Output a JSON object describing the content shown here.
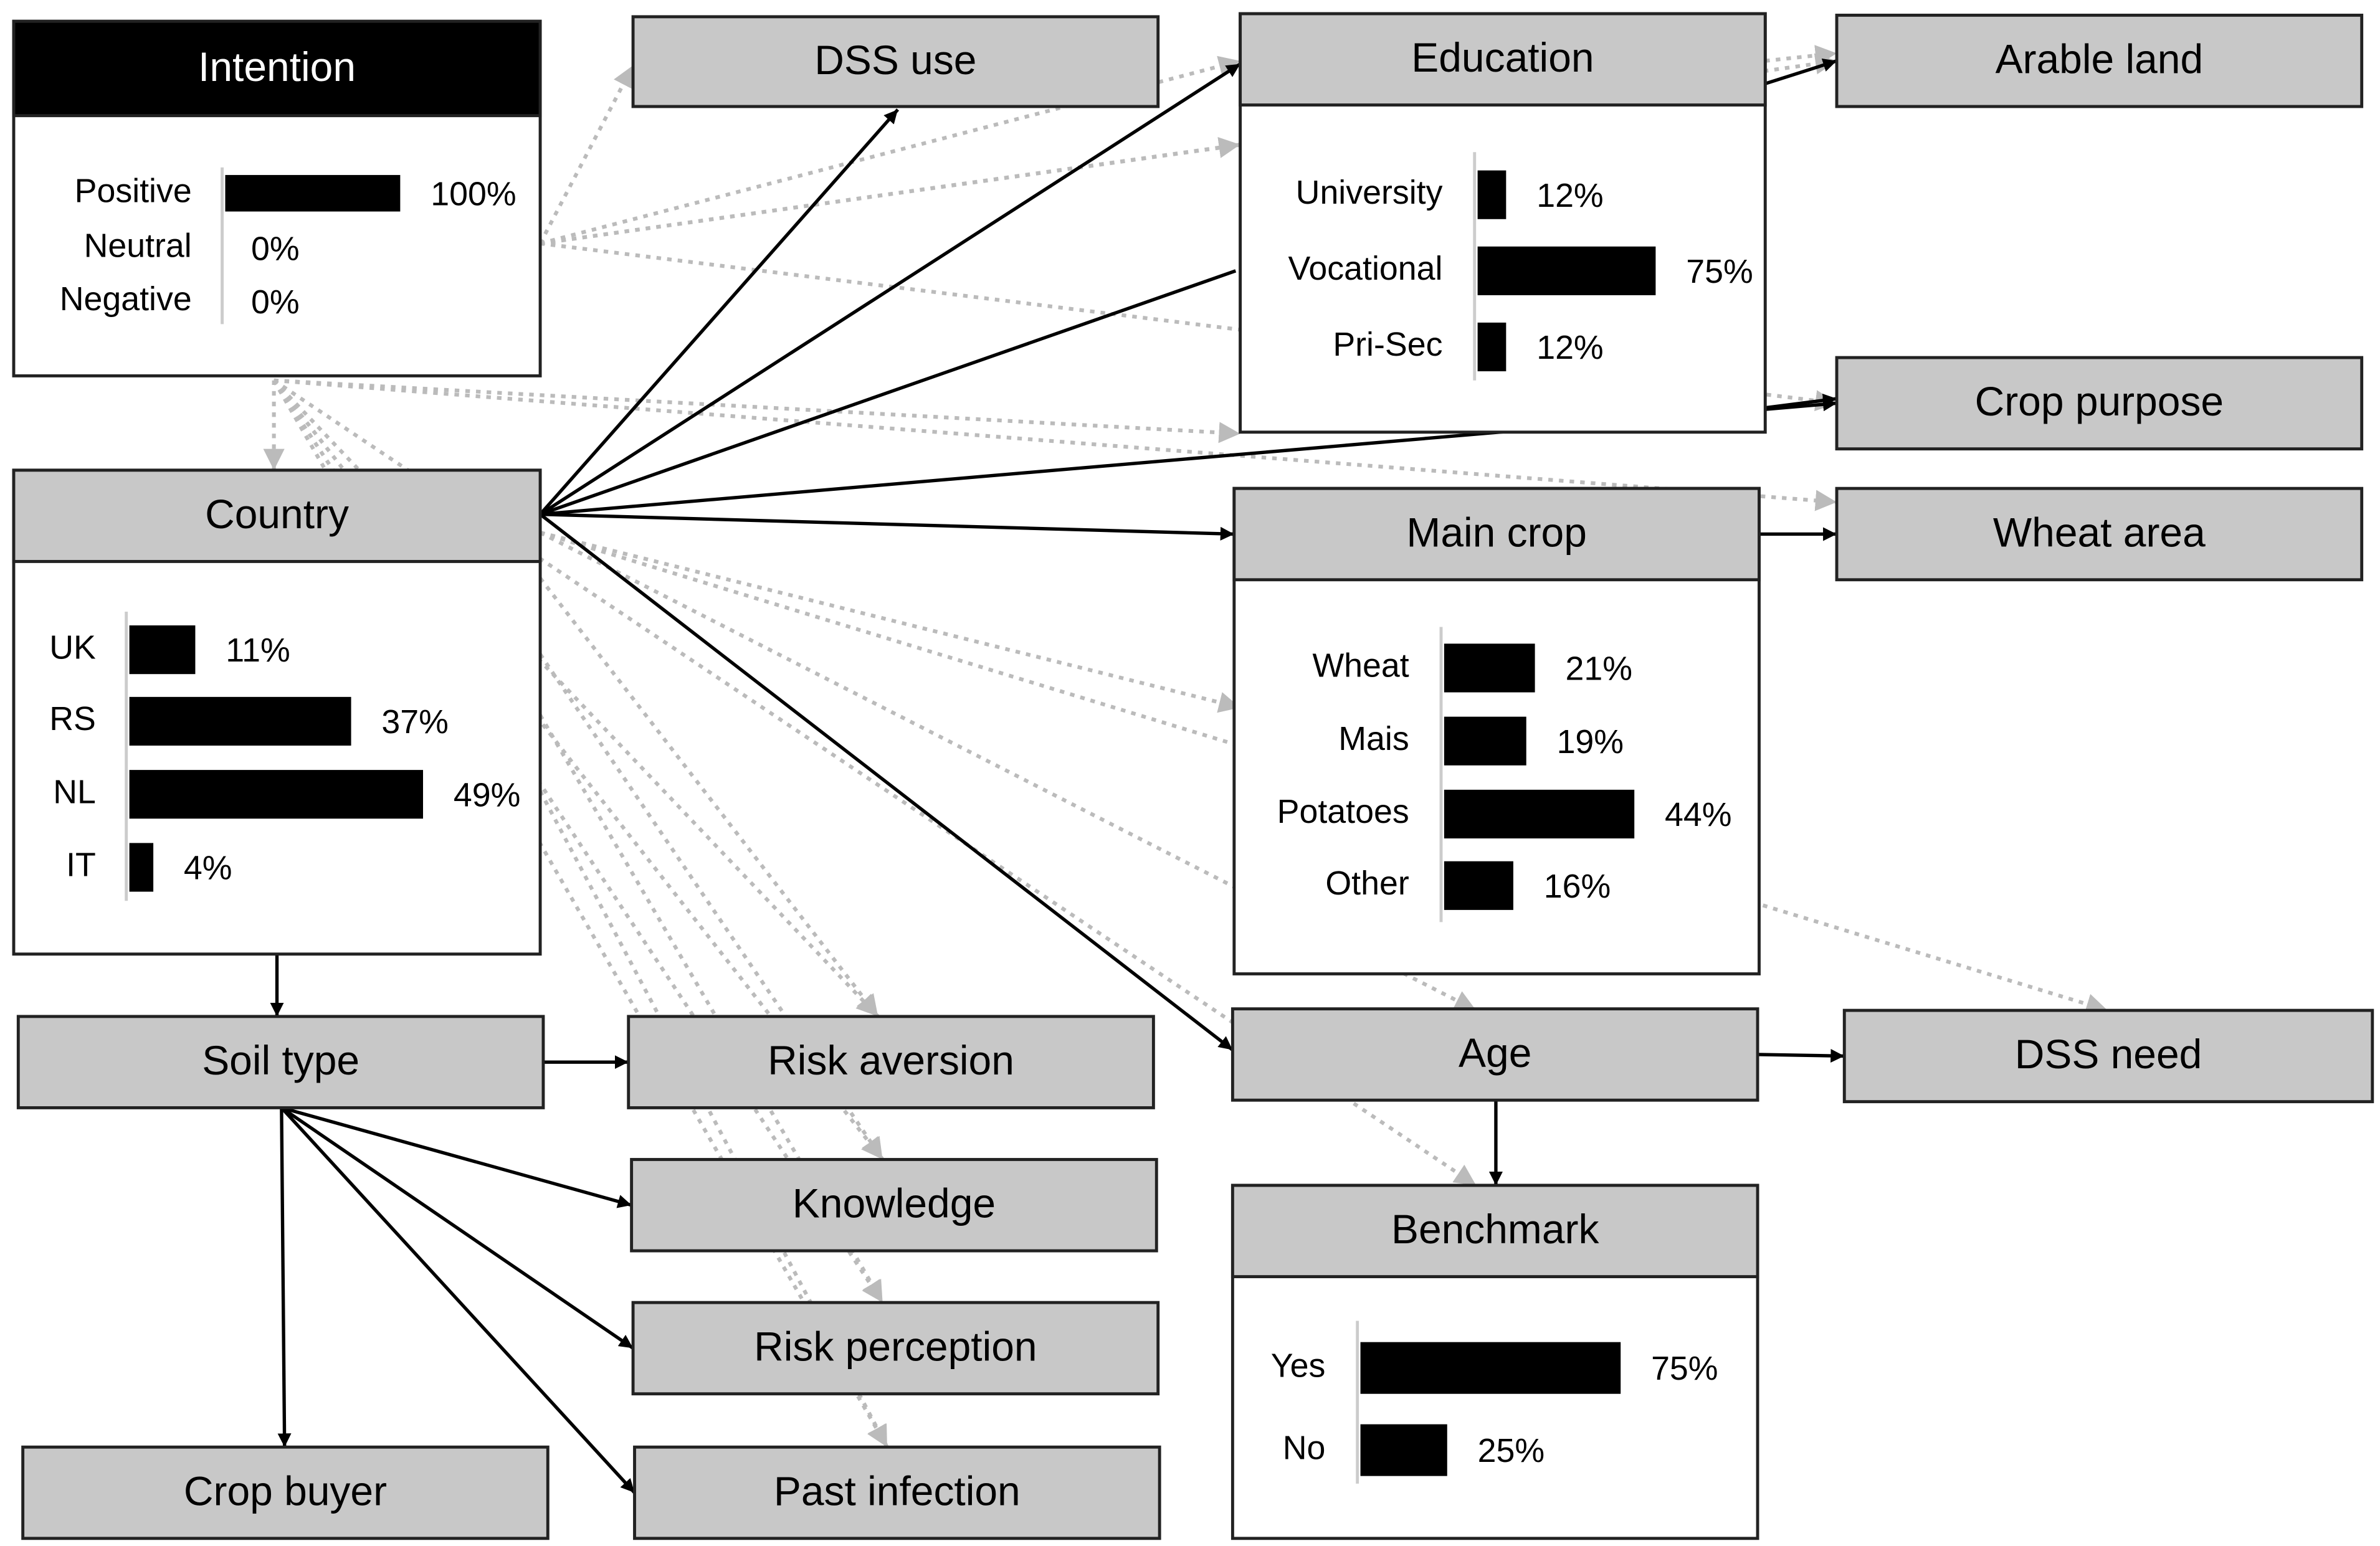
{
  "nodes": [
    {
      "title": "Intention",
      "states": [
        {
          "label": "Positive",
          "value": 100,
          "value_label": "100%"
        },
        {
          "label": "Neutral",
          "value": 0,
          "value_label": "0%"
        },
        {
          "label": "Negative",
          "value": 0,
          "value_label": "0%"
        }
      ]
    },
    {
      "title": "DSS use"
    },
    {
      "title": "Education",
      "states": [
        {
          "label": "University",
          "value": 12,
          "value_label": "12%"
        },
        {
          "label": "Vocational",
          "value": 75,
          "value_label": "75%"
        },
        {
          "label": "Pri-Sec",
          "value": 12,
          "value_label": "12%"
        }
      ]
    },
    {
      "title": "Arable land"
    },
    {
      "title": "Crop purpose"
    },
    {
      "title": "Country",
      "states": [
        {
          "label": "UK",
          "value": 11,
          "value_label": "11%"
        },
        {
          "label": "RS",
          "value": 37,
          "value_label": "37%"
        },
        {
          "label": "NL",
          "value": 49,
          "value_label": "49%"
        },
        {
          "label": "IT",
          "value": 4,
          "value_label": "4%"
        }
      ]
    },
    {
      "title": "Main crop",
      "states": [
        {
          "label": "Wheat",
          "value": 21,
          "value_label": "21%"
        },
        {
          "label": "Mais",
          "value": 19,
          "value_label": "19%"
        },
        {
          "label": "Potatoes",
          "value": 44,
          "value_label": "44%"
        },
        {
          "label": "Other",
          "value": 16,
          "value_label": "16%"
        }
      ]
    },
    {
      "title": "Wheat area"
    },
    {
      "title": "Soil type"
    },
    {
      "title": "Risk aversion"
    },
    {
      "title": "Age"
    },
    {
      "title": "DSS need"
    },
    {
      "title": "Knowledge"
    },
    {
      "title": "Benchmark",
      "states": [
        {
          "label": "Yes",
          "value": 75,
          "value_label": "75%"
        },
        {
          "label": "No",
          "value": 25,
          "value_label": "25%"
        }
      ]
    },
    {
      "title": "Risk perception"
    },
    {
      "title": "Crop buyer"
    },
    {
      "title": "Past infection"
    }
  ]
}
